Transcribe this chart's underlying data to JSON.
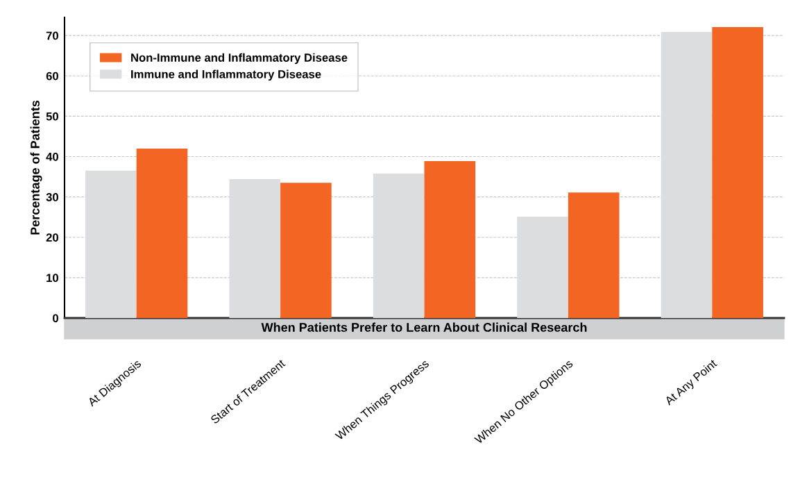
{
  "chart_data": {
    "type": "bar",
    "xlabel": "When Patients Prefer to Learn About Clinical Research",
    "ylabel": "Percentage of Patients",
    "categories": [
      "At Diagnosis",
      "Start of Treatment",
      "When Things Progress",
      "When No Other Options",
      "At Any Point"
    ],
    "series": [
      {
        "name": "Immune and Inflammatory Disease",
        "color": "#dcdddf",
        "values": [
          36.5,
          34.4,
          35.8,
          25.1,
          70.9
        ]
      },
      {
        "name": "Non-Immune and Inflammatory Disease",
        "color": "#f26522",
        "values": [
          42.0,
          33.5,
          38.9,
          31.1,
          72.1
        ]
      }
    ],
    "ylim": [
      0,
      74.5
    ],
    "yticks": [
      0,
      10,
      20,
      30,
      40,
      50,
      60,
      70
    ],
    "grid": "y",
    "legend": "top left"
  }
}
